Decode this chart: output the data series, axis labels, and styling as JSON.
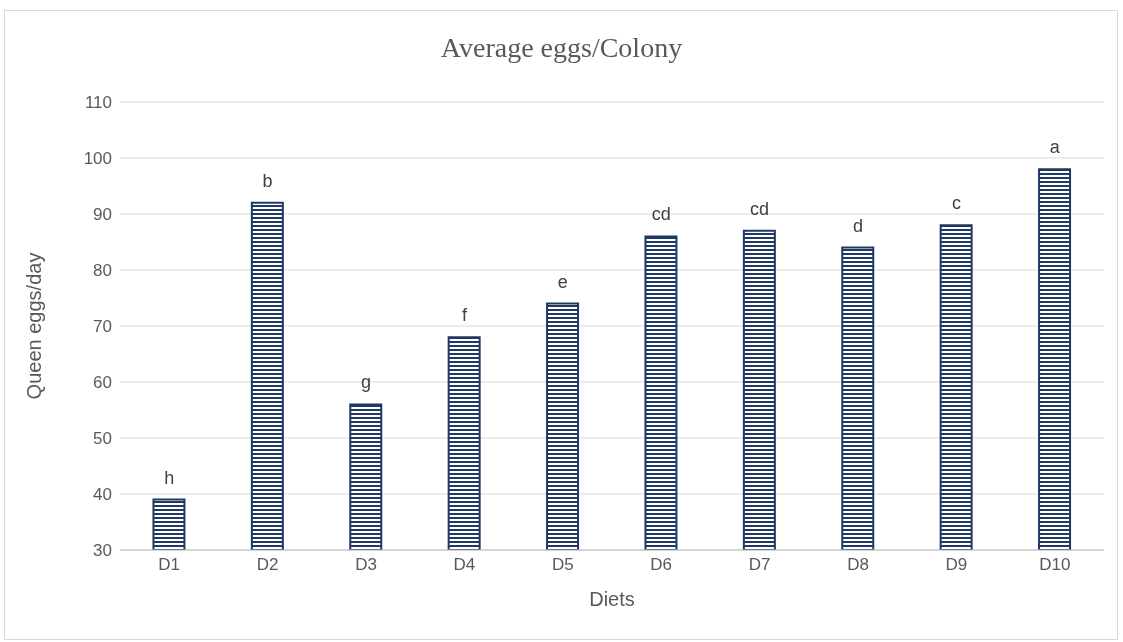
{
  "chart_data": {
    "type": "bar",
    "title": "Average eggs/Colony",
    "xlabel": "Diets",
    "ylabel": "Queen eggs/day",
    "categories": [
      "D1",
      "D2",
      "D3",
      "D4",
      "D5",
      "D6",
      "D7",
      "D8",
      "D9",
      "D10"
    ],
    "values": [
      39,
      92,
      56,
      68,
      74,
      86,
      87,
      84,
      88,
      98
    ],
    "color": "#1f3864",
    "ylim": [
      30,
      110
    ],
    "yticks": [
      30,
      40,
      50,
      60,
      70,
      80,
      90,
      100,
      110
    ],
    "grid": "y",
    "annotations": [
      {
        "text": "h",
        "x": "D1",
        "y": 39
      },
      {
        "text": "b",
        "x": "D2",
        "y": 92
      },
      {
        "text": "g",
        "x": "D3",
        "y": 56
      },
      {
        "text": "f",
        "x": "D4",
        "y": 68
      },
      {
        "text": "e",
        "x": "D5",
        "y": 74
      },
      {
        "text": "cd",
        "x": "D6",
        "y": 86
      },
      {
        "text": "cd",
        "x": "D7",
        "y": 87
      },
      {
        "text": "d",
        "x": "D8",
        "y": 84
      },
      {
        "text": "c",
        "x": "D9",
        "y": 88
      },
      {
        "text": "a",
        "x": "D10",
        "y": 98
      }
    ]
  }
}
